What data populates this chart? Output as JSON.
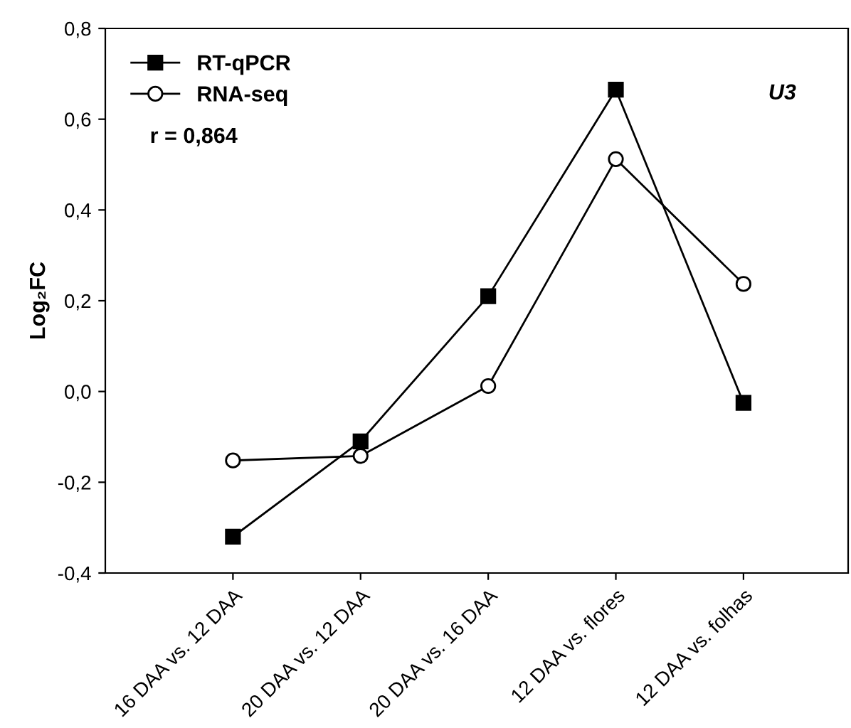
{
  "chart_data": {
    "type": "line",
    "ylabel": "Log₂FC",
    "categories": [
      "16 DAA vs. 12 DAA",
      "20 DAA vs. 12 DAA",
      "20 DAA vs. 16 DAA",
      "12 DAA vs. flores",
      "12 DAA vs. folhas"
    ],
    "series": [
      {
        "name": "RT-qPCR",
        "color": "#000000",
        "marker": "square",
        "values": [
          -0.32,
          -0.11,
          0.21,
          0.665,
          -0.025
        ]
      },
      {
        "name": "RNA-seq",
        "color": "#000000",
        "marker": "circle",
        "values": [
          -0.152,
          -0.142,
          0.012,
          0.512,
          0.237
        ]
      }
    ],
    "ylim": [
      -0.4,
      0.8
    ],
    "yticks": [
      {
        "value": -0.4,
        "label": "-0,4"
      },
      {
        "value": -0.2,
        "label": "-0,2"
      },
      {
        "value": 0.0,
        "label": "0,0"
      },
      {
        "value": 0.2,
        "label": "0,2"
      },
      {
        "value": 0.4,
        "label": "0,4"
      },
      {
        "value": 0.6,
        "label": "0,6"
      },
      {
        "value": 0.8,
        "label": "0,8"
      }
    ],
    "annotations": [
      "r = 0,864",
      "U3"
    ],
    "legend": "top left",
    "grid": false,
    "line_style": "solid"
  }
}
